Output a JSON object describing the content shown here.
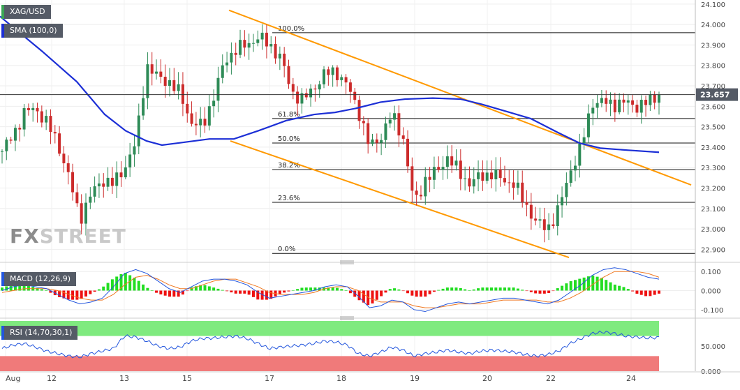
{
  "symbol": "XAG/USD",
  "indicators": {
    "sma": "SMA (100,0)",
    "macd": "MACD (12,26,9)",
    "rsi": "RSI (14,70,30,1)"
  },
  "last_price": "23.657",
  "brand": {
    "part1": "FX",
    "part2": "STREET"
  },
  "colors": {
    "up": "#2e8b57",
    "down": "#cc2b2b",
    "sma": "#1c2fd6",
    "channel": "#ff9900",
    "hist_up": "#22dd22",
    "hist_down": "#ee1111",
    "rsi_over": "#7fea7f",
    "rsi_under": "#f07a7a",
    "tag_bg": "#555b66"
  },
  "chart_data": [
    {
      "type": "candlestick",
      "title": "XAG/USD",
      "price_axis": {
        "min": 22.85,
        "max": 24.12,
        "ticks": [
          "24.100",
          "24.000",
          "23.900",
          "23.800",
          "23.700",
          "23.600",
          "23.500",
          "23.400",
          "23.300",
          "23.200",
          "23.100",
          "23.000",
          "22.900"
        ]
      },
      "x_labels": [
        "Aug",
        "12",
        "13",
        "15",
        "17",
        "18",
        "19",
        "20",
        "22",
        "24"
      ],
      "fib_levels": [
        {
          "label": "100.0%",
          "price": 23.96
        },
        {
          "label": "61.8%",
          "price": 23.54
        },
        {
          "label": "50.0%",
          "price": 23.42
        },
        {
          "label": "38.2%",
          "price": 23.29
        },
        {
          "label": "23.6%",
          "price": 23.13
        },
        {
          "label": "0.0%",
          "price": 22.88
        }
      ],
      "price_line": 23.657,
      "anchors": [
        23.38,
        23.46,
        23.57,
        23.59,
        23.52,
        23.42,
        23.25,
        23.05,
        23.17,
        23.24,
        23.22,
        23.3,
        23.42,
        23.8,
        23.74,
        23.72,
        23.66,
        23.52,
        23.5,
        23.65,
        23.82,
        23.88,
        23.9,
        23.94,
        23.9,
        23.84,
        23.67,
        23.63,
        23.69,
        23.76,
        23.77,
        23.7,
        23.58,
        23.4,
        23.45,
        23.56,
        23.45,
        23.12,
        23.24,
        23.28,
        23.35,
        23.28,
        23.22,
        23.26,
        23.27,
        23.24,
        23.22,
        23.12,
        23.03,
        23.0,
        23.1,
        23.28,
        23.4,
        23.62,
        23.62,
        23.61,
        23.62,
        23.6,
        23.62,
        23.657
      ],
      "sma_line": [
        [
          0,
          24.04
        ],
        [
          60,
          23.87
        ],
        [
          110,
          23.72
        ],
        [
          150,
          23.56
        ],
        [
          180,
          23.48
        ],
        [
          210,
          23.43
        ],
        [
          232,
          23.41
        ],
        [
          255,
          23.42
        ],
        [
          300,
          23.44
        ],
        [
          335,
          23.44
        ],
        [
          370,
          23.48
        ],
        [
          410,
          23.53
        ],
        [
          450,
          23.56
        ],
        [
          480,
          23.57
        ],
        [
          510,
          23.59
        ],
        [
          545,
          23.62
        ],
        [
          580,
          23.635
        ],
        [
          620,
          23.64
        ],
        [
          660,
          23.635
        ],
        [
          690,
          23.61
        ],
        [
          730,
          23.57
        ],
        [
          760,
          23.54
        ],
        [
          800,
          23.47
        ],
        [
          830,
          23.42
        ],
        [
          860,
          23.395
        ],
        [
          900,
          23.385
        ],
        [
          944,
          23.375
        ]
      ],
      "channel_upper": [
        [
          328,
          24.07
        ],
        [
          990,
          23.215
        ]
      ],
      "channel_lower": [
        [
          330,
          23.43
        ],
        [
          815,
          22.86
        ]
      ]
    },
    {
      "type": "line",
      "title": "MACD (12,26,9)",
      "y_ticks": [
        "0.100",
        "0.000",
        "-0.100"
      ],
      "ylim": [
        -0.13,
        0.13
      ],
      "macd": [
        0.0,
        0.02,
        0.03,
        0.02,
        0.01,
        -0.02,
        -0.05,
        -0.07,
        -0.06,
        -0.04,
        0.02,
        0.09,
        0.11,
        0.09,
        0.05,
        0.01,
        -0.01,
        0.02,
        0.05,
        0.06,
        0.06,
        0.05,
        0.03,
        -0.01,
        -0.04,
        -0.03,
        -0.02,
        -0.01,
        0.0,
        0.02,
        0.03,
        0.02,
        -0.03,
        -0.09,
        -0.08,
        -0.05,
        -0.06,
        -0.1,
        -0.11,
        -0.09,
        -0.07,
        -0.06,
        -0.07,
        -0.06,
        -0.05,
        -0.04,
        -0.04,
        -0.05,
        -0.06,
        -0.07,
        -0.05,
        -0.01,
        0.03,
        0.08,
        0.11,
        0.12,
        0.11,
        0.09,
        0.07,
        0.06
      ],
      "signal": [
        -0.01,
        0.0,
        0.01,
        0.01,
        0.01,
        0.0,
        -0.02,
        -0.04,
        -0.05,
        -0.05,
        -0.02,
        0.03,
        0.07,
        0.08,
        0.06,
        0.03,
        0.01,
        0.01,
        0.03,
        0.05,
        0.06,
        0.06,
        0.04,
        0.02,
        -0.01,
        -0.02,
        -0.02,
        -0.02,
        -0.01,
        0.01,
        0.02,
        0.02,
        0.0,
        -0.04,
        -0.06,
        -0.06,
        -0.06,
        -0.08,
        -0.09,
        -0.09,
        -0.08,
        -0.07,
        -0.07,
        -0.07,
        -0.06,
        -0.05,
        -0.05,
        -0.05,
        -0.05,
        -0.06,
        -0.06,
        -0.04,
        -0.01,
        0.03,
        0.07,
        0.1,
        0.1,
        0.1,
        0.09,
        0.07
      ]
    },
    {
      "type": "line",
      "title": "RSI (14,70,30,1)",
      "y_ticks": [
        "50.000",
        "0.000"
      ],
      "ylim": [
        0,
        100
      ],
      "overbought": 70,
      "oversold": 30,
      "rsi": [
        45,
        52,
        55,
        48,
        40,
        35,
        30,
        28,
        35,
        40,
        45,
        70,
        68,
        60,
        50,
        45,
        48,
        60,
        65,
        66,
        68,
        70,
        65,
        55,
        45,
        48,
        50,
        52,
        55,
        60,
        58,
        52,
        35,
        30,
        38,
        48,
        42,
        30,
        35,
        38,
        42,
        38,
        35,
        40,
        42,
        40,
        38,
        33,
        30,
        33,
        40,
        55,
        65,
        75,
        78,
        75,
        70,
        68,
        66,
        67
      ]
    }
  ]
}
